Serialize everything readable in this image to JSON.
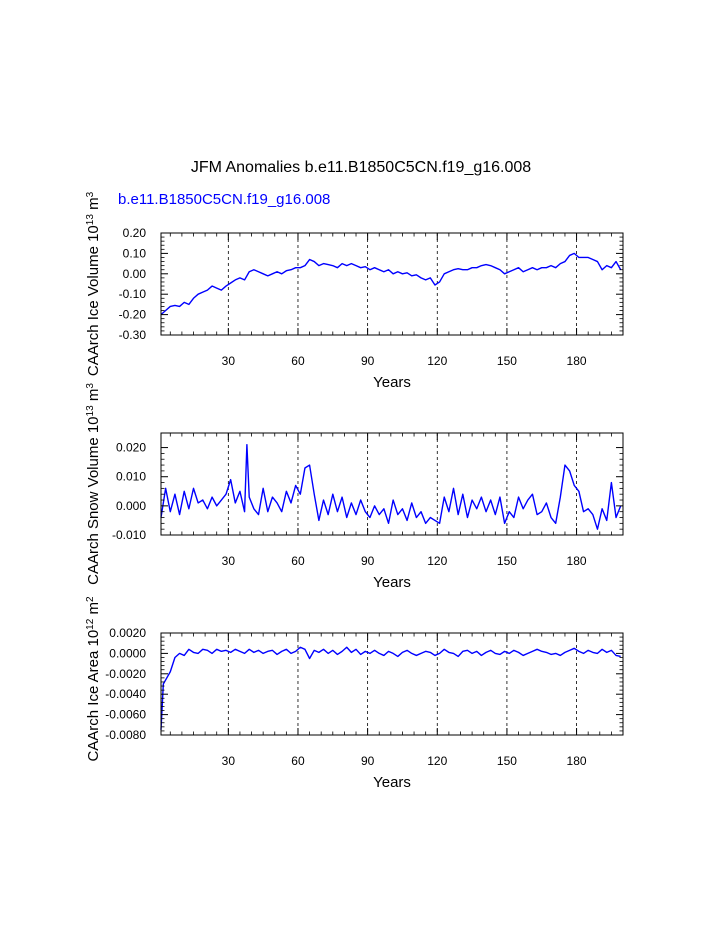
{
  "title": "JFM Anomalies b.e11.B1850C5CN.f19_g16.008",
  "subtitle": "b.e11.B1850C5CN.f19_g16.008",
  "colors": {
    "series": "#0000ff",
    "axes": "#000000",
    "grid": "#000000"
  },
  "chart_data": [
    {
      "type": "line",
      "ylabel_main": "CAArch Ice Volume 10",
      "ylabel_exp": "13",
      "ylabel_unit": " m",
      "ylabel_unit_exp": "3",
      "xlabel": "Years",
      "xlim": [
        1,
        200
      ],
      "ylim": [
        -0.3,
        0.2
      ],
      "x_ticks": [
        30,
        60,
        90,
        120,
        150,
        180
      ],
      "x_tick_labels": [
        "30",
        "60",
        "90",
        "120",
        "150",
        "180"
      ],
      "y_ticks": [
        0.2,
        0.1,
        0.0,
        -0.1,
        -0.2,
        -0.3
      ],
      "y_tick_labels": [
        "0.20",
        "0.10",
        "0.00",
        "-0.10",
        "-0.20",
        "-0.30"
      ],
      "grid": "vertical-dashed",
      "series": [
        {
          "name": "b.e11.B1850C5CN.f19_g16.008",
          "x": [
            1,
            3,
            5,
            7,
            9,
            11,
            13,
            15,
            17,
            19,
            21,
            23,
            25,
            27,
            29,
            31,
            33,
            35,
            37,
            39,
            41,
            43,
            45,
            47,
            49,
            51,
            53,
            55,
            57,
            59,
            61,
            63,
            65,
            67,
            69,
            71,
            73,
            75,
            77,
            79,
            81,
            83,
            85,
            87,
            89,
            91,
            93,
            95,
            97,
            99,
            101,
            103,
            105,
            107,
            109,
            111,
            113,
            115,
            117,
            119,
            121,
            123,
            125,
            127,
            129,
            131,
            133,
            135,
            137,
            139,
            141,
            143,
            145,
            147,
            149,
            151,
            153,
            155,
            157,
            159,
            161,
            163,
            165,
            167,
            169,
            171,
            173,
            175,
            177,
            179,
            181,
            183,
            185,
            187,
            189,
            191,
            193,
            195,
            197,
            199
          ],
          "values": [
            -0.2,
            -0.18,
            -0.16,
            -0.155,
            -0.16,
            -0.14,
            -0.15,
            -0.12,
            -0.1,
            -0.09,
            -0.08,
            -0.06,
            -0.07,
            -0.08,
            -0.06,
            -0.045,
            -0.03,
            -0.02,
            -0.03,
            0.01,
            0.02,
            0.01,
            0.0,
            -0.01,
            0.0,
            0.01,
            0.0,
            0.015,
            0.02,
            0.03,
            0.03,
            0.04,
            0.07,
            0.06,
            0.04,
            0.05,
            0.045,
            0.04,
            0.03,
            0.05,
            0.04,
            0.05,
            0.04,
            0.03,
            0.035,
            0.02,
            0.03,
            0.02,
            0.01,
            0.02,
            0.0,
            0.01,
            0.0,
            0.005,
            -0.01,
            -0.005,
            -0.02,
            -0.03,
            -0.02,
            -0.055,
            -0.04,
            0.0,
            0.01,
            0.02,
            0.025,
            0.02,
            0.02,
            0.03,
            0.03,
            0.04,
            0.045,
            0.04,
            0.03,
            0.02,
            0.0,
            0.01,
            0.02,
            0.03,
            0.01,
            0.02,
            0.03,
            0.02,
            0.03,
            0.03,
            0.04,
            0.03,
            0.05,
            0.06,
            0.09,
            0.1,
            0.08,
            0.08,
            0.08,
            0.07,
            0.06,
            0.02,
            0.04,
            0.03,
            0.06,
            0.02
          ]
        }
      ]
    },
    {
      "type": "line",
      "ylabel_main": "CAArch Snow Volume 10",
      "ylabel_exp": "13",
      "ylabel_unit": " m",
      "ylabel_unit_exp": "3",
      "xlabel": "Years",
      "xlim": [
        1,
        200
      ],
      "ylim": [
        -0.01,
        0.025
      ],
      "x_ticks": [
        30,
        60,
        90,
        120,
        150,
        180
      ],
      "x_tick_labels": [
        "30",
        "60",
        "90",
        "120",
        "150",
        "180"
      ],
      "y_ticks": [
        0.02,
        0.01,
        0.0,
        -0.01
      ],
      "y_tick_labels": [
        "0.020",
        "0.010",
        "0.000",
        "-0.010"
      ],
      "grid": "vertical-dashed",
      "series": [
        {
          "name": "b.e11.B1850C5CN.f19_g16.008",
          "x": [
            1,
            3,
            5,
            7,
            9,
            11,
            13,
            15,
            17,
            19,
            21,
            23,
            25,
            27,
            29,
            31,
            33,
            35,
            37,
            38,
            39,
            41,
            43,
            45,
            47,
            49,
            51,
            53,
            55,
            57,
            59,
            61,
            63,
            65,
            67,
            69,
            71,
            73,
            75,
            77,
            79,
            81,
            83,
            85,
            87,
            89,
            91,
            93,
            95,
            97,
            99,
            101,
            103,
            105,
            107,
            109,
            111,
            113,
            115,
            117,
            119,
            121,
            123,
            125,
            127,
            129,
            131,
            133,
            135,
            137,
            139,
            141,
            143,
            145,
            147,
            149,
            151,
            153,
            155,
            157,
            159,
            161,
            163,
            165,
            167,
            169,
            171,
            173,
            175,
            177,
            179,
            181,
            183,
            185,
            187,
            189,
            191,
            193,
            195,
            197,
            199
          ],
          "values": [
            -0.004,
            0.006,
            -0.002,
            0.004,
            -0.003,
            0.005,
            -0.001,
            0.006,
            0.001,
            0.002,
            -0.001,
            0.003,
            0.0,
            0.002,
            0.004,
            0.009,
            0.001,
            0.005,
            -0.002,
            0.021,
            0.003,
            -0.001,
            -0.003,
            0.006,
            -0.002,
            0.003,
            0.001,
            -0.002,
            0.005,
            0.001,
            0.007,
            0.004,
            0.013,
            0.014,
            0.004,
            -0.005,
            0.002,
            -0.003,
            0.004,
            -0.002,
            0.003,
            -0.004,
            0.001,
            -0.003,
            0.002,
            -0.002,
            -0.004,
            0.0,
            -0.003,
            -0.001,
            -0.006,
            0.002,
            -0.003,
            -0.001,
            -0.005,
            0.001,
            -0.004,
            -0.002,
            -0.006,
            -0.004,
            -0.005,
            -0.006,
            0.003,
            -0.002,
            0.006,
            -0.003,
            0.004,
            -0.004,
            0.002,
            -0.001,
            0.003,
            -0.002,
            0.002,
            -0.003,
            0.003,
            -0.006,
            -0.002,
            -0.004,
            0.003,
            -0.001,
            0.002,
            0.004,
            -0.003,
            -0.002,
            0.001,
            -0.004,
            -0.006,
            0.003,
            0.014,
            0.012,
            0.007,
            0.005,
            -0.002,
            -0.001,
            -0.003,
            -0.008,
            -0.001,
            -0.005,
            0.008,
            -0.004,
            0.0
          ]
        }
      ]
    },
    {
      "type": "line",
      "ylabel_main": "CAArch Ice Area 10",
      "ylabel_exp": "12",
      "ylabel_unit": " m",
      "ylabel_unit_exp": "2",
      "xlabel": "Years",
      "xlim": [
        1,
        200
      ],
      "ylim": [
        -0.008,
        0.002
      ],
      "x_ticks": [
        30,
        60,
        90,
        120,
        150,
        180
      ],
      "x_tick_labels": [
        "30",
        "60",
        "90",
        "120",
        "150",
        "180"
      ],
      "y_ticks": [
        0.002,
        0.0,
        -0.002,
        -0.004,
        -0.006,
        -0.008
      ],
      "y_tick_labels": [
        "0.0020",
        "0.0000",
        "-0.0020",
        "-0.0040",
        "-0.0060",
        "-0.0080"
      ],
      "grid": "vertical-dashed",
      "series": [
        {
          "name": "b.e11.B1850C5CN.f19_g16.008",
          "x": [
            1,
            2,
            3,
            5,
            7,
            9,
            11,
            13,
            15,
            17,
            19,
            21,
            23,
            25,
            27,
            29,
            31,
            33,
            35,
            37,
            39,
            41,
            43,
            45,
            47,
            49,
            51,
            53,
            55,
            57,
            59,
            61,
            63,
            65,
            67,
            69,
            71,
            73,
            75,
            77,
            79,
            81,
            83,
            85,
            87,
            89,
            91,
            93,
            95,
            97,
            99,
            101,
            103,
            105,
            107,
            109,
            111,
            113,
            115,
            117,
            119,
            121,
            123,
            125,
            127,
            129,
            131,
            133,
            135,
            137,
            139,
            141,
            143,
            145,
            147,
            149,
            151,
            153,
            155,
            157,
            159,
            161,
            163,
            165,
            167,
            169,
            171,
            173,
            175,
            177,
            179,
            181,
            183,
            185,
            187,
            189,
            191,
            193,
            195,
            197,
            199
          ],
          "values": [
            -0.0075,
            -0.003,
            -0.0026,
            -0.0018,
            -0.0004,
            0.0,
            -0.0002,
            0.0004,
            0.0001,
            0.0,
            0.0004,
            0.0003,
            0.0,
            0.0004,
            0.0002,
            0.0003,
            0.0001,
            0.0004,
            0.0002,
            0.0,
            0.0004,
            0.0001,
            0.0003,
            0.0,
            0.0002,
            0.0003,
            -0.0001,
            0.0002,
            0.0004,
            0.0,
            0.0002,
            0.0006,
            0.0004,
            -0.0005,
            0.0003,
            0.0001,
            0.0004,
            0.0,
            0.0003,
            -0.0001,
            0.0002,
            0.0006,
            0.0001,
            0.0004,
            -0.0001,
            0.0002,
            0.0,
            0.0003,
            0.0,
            -0.0002,
            0.0002,
            0.0,
            -0.0003,
            0.0001,
            0.0003,
            0.0,
            -0.0002,
            0.0,
            0.0002,
            0.0001,
            -0.0002,
            0.0,
            0.0004,
            0.0001,
            0.0,
            -0.0003,
            0.0002,
            0.0003,
            0.0,
            0.0002,
            -0.0002,
            0.0001,
            0.0003,
            0.0,
            -0.0001,
            0.0002,
            0.0,
            0.0003,
            0.0001,
            -0.0002,
            0.0,
            0.0002,
            0.0004,
            0.0002,
            0.0001,
            -0.0001,
            0.0,
            -0.0002,
            0.0001,
            0.0003,
            0.0005,
            0.0002,
            0.0,
            0.0003,
            0.0001,
            0.0,
            0.0004,
            0.0001,
            0.0003,
            -0.0002,
            -0.0003
          ]
        }
      ]
    }
  ]
}
